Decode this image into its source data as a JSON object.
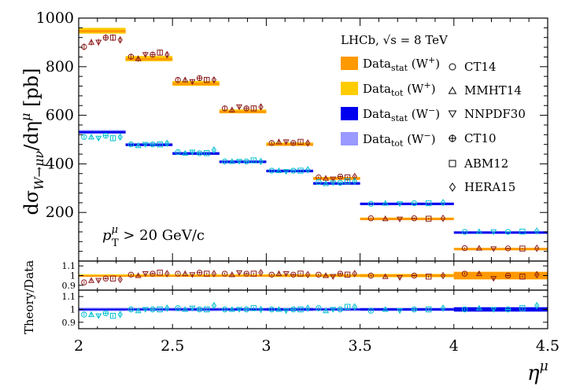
{
  "chart_data": {
    "type": "scatter",
    "title": "LHCb, √s = 8 TeV",
    "ylabel": "dσ W→μν /dη^μ [pb]",
    "ylabel_parts": {
      "main": "dσ",
      "sub": "W→μν",
      "tail": "/dη",
      "sup": "μ",
      "unit": "[pb]"
    },
    "xlabel": "η^μ",
    "xlabel_parts": {
      "main": "η",
      "sup": "μ"
    },
    "annotation": {
      "p": "p",
      "sup": "μ",
      "sub": "T",
      "rest": " > 20 GeV/c"
    },
    "ratio_ylabel": "Theory/Data",
    "xlim": [
      2.0,
      4.5
    ],
    "ylim": [
      0,
      1000
    ],
    "ratio_ylim": [
      0.85,
      1.15
    ],
    "x_ticks": [
      "2",
      "2.5",
      "3",
      "3.5",
      "4",
      "4.5"
    ],
    "x_tick_values": [
      2.0,
      2.5,
      3.0,
      3.5,
      4.0,
      4.5
    ],
    "y_ticks": [
      "200",
      "400",
      "600",
      "800",
      "1000"
    ],
    "y_tick_values": [
      200,
      400,
      600,
      800,
      1000
    ],
    "ratio_ticks": [
      "0.9",
      "1",
      "1.1"
    ],
    "ratio_tick_values": [
      0.9,
      1.0,
      1.1
    ],
    "bins": [
      [
        2.0,
        2.25
      ],
      [
        2.25,
        2.5
      ],
      [
        2.5,
        2.75
      ],
      [
        2.75,
        3.0
      ],
      [
        3.0,
        3.25
      ],
      [
        3.25,
        3.5
      ],
      [
        3.5,
        4.0
      ],
      [
        4.0,
        4.5
      ]
    ],
    "data": {
      "W_plus": [
        948,
        833,
        731,
        616,
        481,
        341,
        176,
        52
      ],
      "W_minus": [
        532,
        480,
        444,
        410,
        372,
        322,
        238,
        120
      ]
    },
    "data_errors": {
      "W_plus_stat": [
        3,
        3,
        3,
        3,
        3,
        3,
        2,
        2
      ],
      "W_plus_tot": [
        12,
        11,
        10,
        8,
        7,
        5,
        3,
        2
      ],
      "W_minus_stat": [
        3,
        3,
        3,
        3,
        3,
        2,
        2,
        2
      ],
      "W_minus_tot": [
        7,
        6,
        6,
        5,
        5,
        4,
        3,
        2
      ]
    },
    "theory_ratio_wplus": {
      "CT14": [
        0.93,
        1.01,
        1.02,
        1.02,
        1.01,
        1.01,
        1.0,
        1.02
      ],
      "MMHT14": [
        0.95,
        1.0,
        1.02,
        1.01,
        1.02,
        1.0,
        0.99,
        1.02
      ],
      "NNPDF30": [
        0.95,
        1.02,
        1.01,
        1.03,
        1.02,
        0.99,
        0.98,
        0.97
      ],
      "CT10": [
        0.97,
        1.02,
        1.03,
        1.02,
        1.01,
        1.02,
        1.0,
        1.0
      ],
      "ABM12": [
        0.97,
        1.03,
        1.02,
        1.02,
        1.02,
        1.01,
        0.99,
        0.99
      ],
      "HERA15": [
        0.96,
        1.02,
        1.02,
        1.03,
        1.01,
        1.02,
        1.0,
        1.01
      ]
    },
    "theory_ratio_wminus": {
      "CT14": [
        0.96,
        1.0,
        1.01,
        1.0,
        1.0,
        1.01,
        0.99,
        1.0
      ],
      "MMHT14": [
        0.96,
        0.99,
        1.0,
        1.0,
        1.0,
        0.99,
        1.0,
        1.01
      ],
      "NNPDF30": [
        0.95,
        1.0,
        1.01,
        1.0,
        0.99,
        1.0,
        0.99,
        1.0
      ],
      "CT10": [
        0.97,
        1.0,
        1.0,
        1.0,
        1.0,
        1.0,
        1.0,
        1.0
      ],
      "ABM12": [
        0.95,
        1.0,
        1.0,
        1.01,
        1.0,
        1.02,
        1.0,
        1.01
      ],
      "HERA15": [
        0.96,
        1.01,
        1.03,
        1.0,
        1.01,
        1.02,
        1.01,
        1.03
      ]
    },
    "theory_error": 0.012,
    "legend_labels": [
      {
        "main": "Data",
        "sub": "stat",
        "rest": " (W",
        "sup": "+",
        "end": ")"
      },
      {
        "main": "Data",
        "sub": "tot",
        "rest": " (W",
        "sup": "+",
        "end": ")"
      },
      {
        "main": "Data",
        "sub": "stat",
        "rest": " (W",
        "sup": "−",
        "end": ")"
      },
      {
        "main": "Data",
        "sub": "tot",
        "rest": " (W",
        "sup": "−",
        "end": ")"
      }
    ],
    "marker_legend": [
      {
        "label": "CT14",
        "marker": "circle"
      },
      {
        "label": "MMHT14",
        "marker": "triangle-up"
      },
      {
        "label": "NNPDF30",
        "marker": "triangle-down"
      },
      {
        "label": "CT10",
        "marker": "cross-circle"
      },
      {
        "label": "ABM12",
        "marker": "square"
      },
      {
        "label": "HERA15",
        "marker": "diamond"
      }
    ],
    "colors": {
      "wplus_stat": "#ff9900",
      "wplus_tot": "#ffcc00",
      "wminus_stat": "#0000ee",
      "wminus_tot": "#9999ff",
      "wplus_theory": "#8b1a1a",
      "wminus_theory": "#00c0d0",
      "wplus_line": "#ff9900",
      "wminus_line": "#0000ee"
    }
  }
}
